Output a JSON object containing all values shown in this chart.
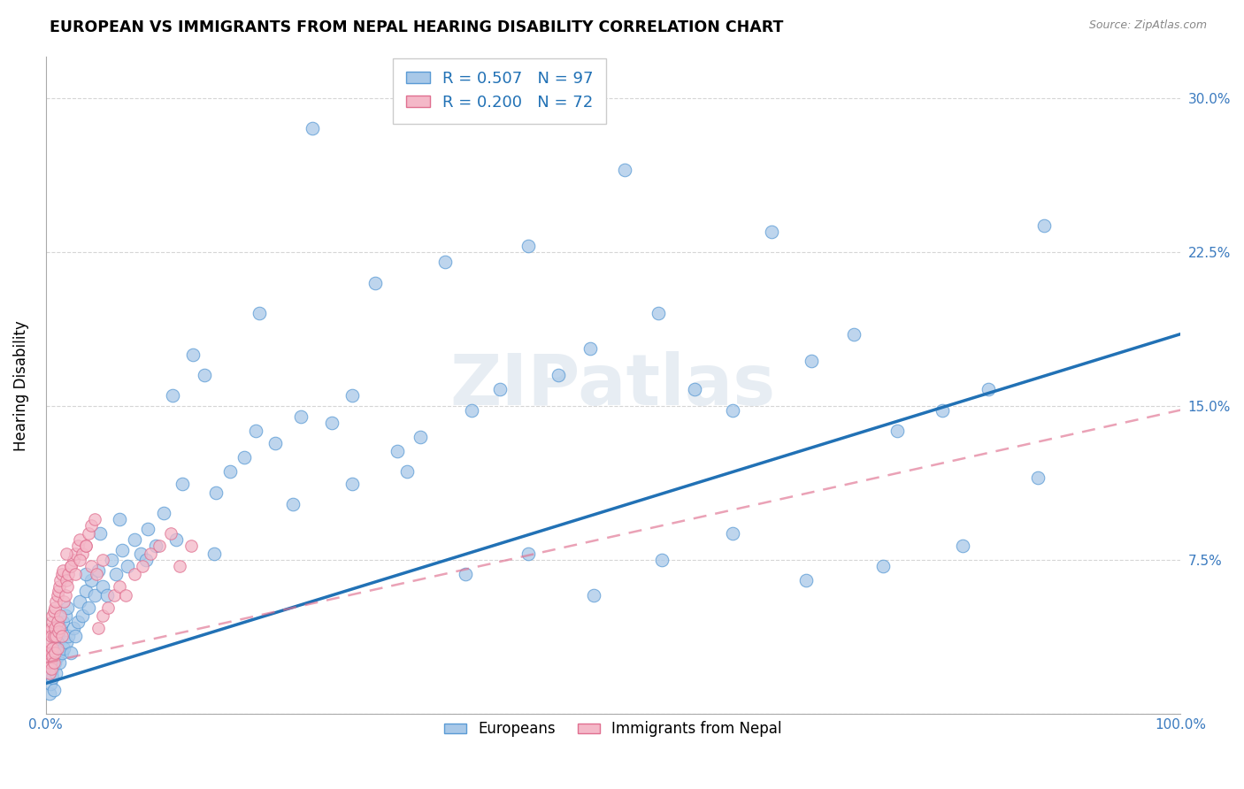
{
  "title": "EUROPEAN VS IMMIGRANTS FROM NEPAL HEARING DISABILITY CORRELATION CHART",
  "source": "Source: ZipAtlas.com",
  "ylabel": "Hearing Disability",
  "xlabel": "",
  "xlim": [
    0.0,
    1.0
  ],
  "ylim": [
    0.0,
    0.32
  ],
  "xticks": [
    0.0,
    0.2,
    0.4,
    0.6,
    0.8,
    1.0
  ],
  "xticklabels": [
    "0.0%",
    "",
    "",
    "",
    "",
    "100.0%"
  ],
  "yticks": [
    0.0,
    0.075,
    0.15,
    0.225,
    0.3
  ],
  "yticklabels": [
    "",
    "7.5%",
    "15.0%",
    "22.5%",
    "30.0%"
  ],
  "grid_color": "#cccccc",
  "background_color": "#ffffff",
  "blue_color": "#a8c8e8",
  "blue_edge_color": "#5b9bd5",
  "blue_line_color": "#2171b5",
  "pink_color": "#f4b8c8",
  "pink_edge_color": "#e07090",
  "pink_line_color": "#e07090",
  "watermark_text": "ZIPatlas",
  "R_blue": 0.507,
  "N_blue": 97,
  "R_pink": 0.2,
  "N_pink": 72,
  "legend_bottom_blue": "Europeans",
  "legend_bottom_pink": "Immigrants from Nepal",
  "blue_line_x0": 0.0,
  "blue_line_y0": 0.015,
  "blue_line_x1": 1.0,
  "blue_line_y1": 0.185,
  "pink_line_x0": 0.0,
  "pink_line_y0": 0.025,
  "pink_line_x1": 1.0,
  "pink_line_y1": 0.148,
  "blue_x": [
    0.003,
    0.004,
    0.005,
    0.005,
    0.006,
    0.006,
    0.007,
    0.007,
    0.008,
    0.008,
    0.009,
    0.01,
    0.01,
    0.011,
    0.012,
    0.013,
    0.014,
    0.015,
    0.016,
    0.017,
    0.018,
    0.019,
    0.02,
    0.022,
    0.024,
    0.026,
    0.028,
    0.03,
    0.032,
    0.035,
    0.038,
    0.04,
    0.043,
    0.046,
    0.05,
    0.054,
    0.058,
    0.062,
    0.067,
    0.072,
    0.078,
    0.084,
    0.09,
    0.097,
    0.104,
    0.112,
    0.12,
    0.13,
    0.14,
    0.15,
    0.162,
    0.175,
    0.188,
    0.202,
    0.218,
    0.235,
    0.252,
    0.27,
    0.29,
    0.31,
    0.33,
    0.352,
    0.375,
    0.4,
    0.425,
    0.452,
    0.48,
    0.51,
    0.54,
    0.572,
    0.605,
    0.64,
    0.675,
    0.712,
    0.75,
    0.79,
    0.831,
    0.874,
    0.035,
    0.048,
    0.065,
    0.088,
    0.115,
    0.148,
    0.185,
    0.225,
    0.27,
    0.318,
    0.37,
    0.425,
    0.483,
    0.543,
    0.605,
    0.67,
    0.738,
    0.808,
    0.88
  ],
  "blue_y": [
    0.01,
    0.015,
    0.02,
    0.025,
    0.018,
    0.022,
    0.012,
    0.028,
    0.025,
    0.032,
    0.02,
    0.035,
    0.028,
    0.038,
    0.025,
    0.042,
    0.03,
    0.045,
    0.032,
    0.048,
    0.035,
    0.052,
    0.038,
    0.03,
    0.042,
    0.038,
    0.045,
    0.055,
    0.048,
    0.06,
    0.052,
    0.065,
    0.058,
    0.07,
    0.062,
    0.058,
    0.075,
    0.068,
    0.08,
    0.072,
    0.085,
    0.078,
    0.09,
    0.082,
    0.098,
    0.155,
    0.112,
    0.175,
    0.165,
    0.108,
    0.118,
    0.125,
    0.195,
    0.132,
    0.102,
    0.285,
    0.142,
    0.112,
    0.21,
    0.128,
    0.135,
    0.22,
    0.148,
    0.158,
    0.228,
    0.165,
    0.178,
    0.265,
    0.195,
    0.158,
    0.148,
    0.235,
    0.172,
    0.185,
    0.138,
    0.148,
    0.158,
    0.115,
    0.068,
    0.088,
    0.095,
    0.075,
    0.085,
    0.078,
    0.138,
    0.145,
    0.155,
    0.118,
    0.068,
    0.078,
    0.058,
    0.075,
    0.088,
    0.065,
    0.072,
    0.082,
    0.238
  ],
  "pink_x": [
    0.002,
    0.002,
    0.003,
    0.003,
    0.003,
    0.004,
    0.004,
    0.004,
    0.005,
    0.005,
    0.005,
    0.005,
    0.006,
    0.006,
    0.006,
    0.006,
    0.007,
    0.007,
    0.007,
    0.008,
    0.008,
    0.008,
    0.009,
    0.009,
    0.01,
    0.01,
    0.01,
    0.011,
    0.011,
    0.012,
    0.012,
    0.013,
    0.013,
    0.014,
    0.014,
    0.015,
    0.016,
    0.017,
    0.018,
    0.019,
    0.02,
    0.022,
    0.024,
    0.026,
    0.028,
    0.03,
    0.032,
    0.035,
    0.038,
    0.04,
    0.043,
    0.046,
    0.05,
    0.055,
    0.06,
    0.065,
    0.07,
    0.078,
    0.085,
    0.092,
    0.1,
    0.11,
    0.118,
    0.128,
    0.018,
    0.022,
    0.026,
    0.03,
    0.035,
    0.04,
    0.045,
    0.05
  ],
  "pink_y": [
    0.025,
    0.03,
    0.028,
    0.032,
    0.02,
    0.035,
    0.025,
    0.04,
    0.03,
    0.042,
    0.038,
    0.022,
    0.045,
    0.032,
    0.048,
    0.028,
    0.05,
    0.038,
    0.025,
    0.052,
    0.042,
    0.03,
    0.055,
    0.038,
    0.058,
    0.045,
    0.032,
    0.06,
    0.04,
    0.062,
    0.042,
    0.065,
    0.048,
    0.068,
    0.038,
    0.07,
    0.055,
    0.058,
    0.065,
    0.062,
    0.068,
    0.072,
    0.075,
    0.078,
    0.082,
    0.085,
    0.078,
    0.082,
    0.088,
    0.092,
    0.095,
    0.042,
    0.048,
    0.052,
    0.058,
    0.062,
    0.058,
    0.068,
    0.072,
    0.078,
    0.082,
    0.088,
    0.072,
    0.082,
    0.078,
    0.072,
    0.068,
    0.075,
    0.082,
    0.072,
    0.068,
    0.075
  ]
}
